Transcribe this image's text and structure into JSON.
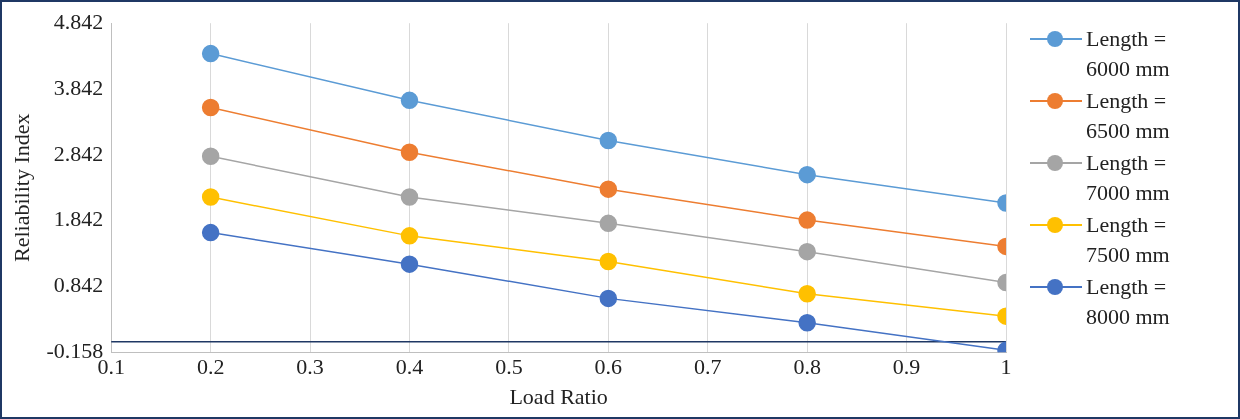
{
  "chart_data": {
    "type": "line",
    "xlabel": "Load Ratio",
    "ylabel": "Reliability Index",
    "x": [
      0.2,
      0.4,
      0.6,
      0.8,
      1
    ],
    "xlim": [
      0.1,
      1
    ],
    "xticks": [
      0.1,
      0.2,
      0.3,
      0.4,
      0.5,
      0.6,
      0.7,
      0.8,
      0.9,
      1
    ],
    "ylim": [
      -0.158,
      4.842
    ],
    "yticks": [
      -0.158,
      0.842,
      1.842,
      2.842,
      3.842,
      4.842
    ],
    "grid": "x",
    "legend": "right",
    "marker": "circle",
    "line_style": "solid",
    "ref_lines": [
      {
        "axis": "y",
        "value": 0,
        "color": "#1f3864"
      }
    ],
    "series": [
      {
        "name": "Length = 6000 mm",
        "color": "#5b9bd5",
        "values": [
          4.38,
          3.67,
          3.06,
          2.54,
          2.11
        ]
      },
      {
        "name": "Length = 6500 mm",
        "color": "#ed7d31",
        "values": [
          3.56,
          2.88,
          2.32,
          1.85,
          1.45
        ]
      },
      {
        "name": "Length = 7000 mm",
        "color": "#a5a5a5",
        "values": [
          2.82,
          2.2,
          1.8,
          1.37,
          0.9
        ]
      },
      {
        "name": "Length = 7500 mm",
        "color": "#ffc000",
        "values": [
          2.2,
          1.61,
          1.22,
          0.73,
          0.39
        ]
      },
      {
        "name": "Length = 8000 mm",
        "color": "#4472c4",
        "values": [
          1.66,
          1.18,
          0.66,
          0.29,
          -0.13
        ]
      }
    ]
  }
}
